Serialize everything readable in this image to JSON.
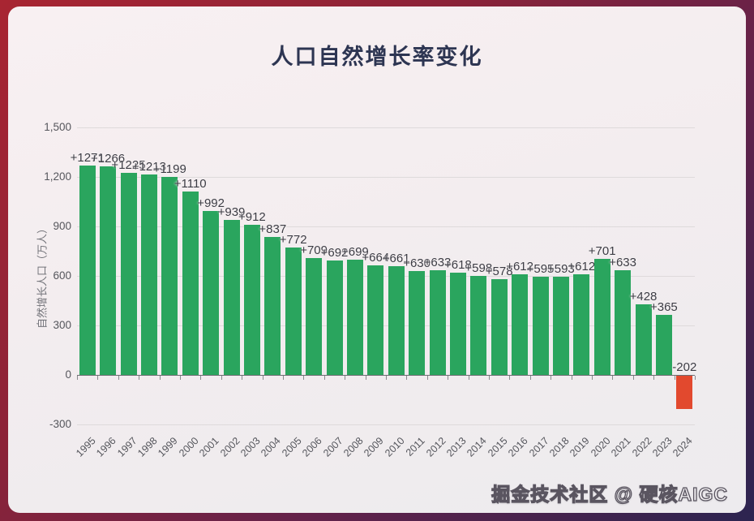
{
  "frame": {
    "border_gradient": [
      "#a82532",
      "#8c2338",
      "#63224a",
      "#2c2450"
    ],
    "card_bg": [
      "#f8f0f2",
      "#edebee"
    ]
  },
  "header": {
    "title": "人口自然增长率变化",
    "title_color": "#2d3552"
  },
  "watermark": {
    "text": "掘金技术社区 @ 硬核AIGC"
  },
  "chart_data": {
    "type": "bar",
    "title": "人口自然增长率变化",
    "xlabel": "",
    "ylabel": "自然增长人口（万人）",
    "categories": [
      "1995",
      "1996",
      "1997",
      "1998",
      "1999",
      "2000",
      "2001",
      "2002",
      "2003",
      "2004",
      "2005",
      "2006",
      "2007",
      "2008",
      "2009",
      "2010",
      "2011",
      "2012",
      "2013",
      "2014",
      "2015",
      "2016",
      "2017",
      "2018",
      "2019",
      "2020",
      "2021",
      "2022",
      "2023",
      "2024"
    ],
    "values": [
      1271,
      1266,
      1225,
      1213,
      1199,
      1110,
      992,
      939,
      912,
      837,
      772,
      709,
      692,
      699,
      664,
      661,
      630,
      633,
      618,
      598,
      578,
      612,
      595,
      593,
      612,
      701,
      633,
      428,
      365,
      -202
    ],
    "value_labels": [
      "+1271",
      "+1266",
      "+1225",
      "+1213",
      "+1199",
      "+1110",
      "+992",
      "+939",
      "+912",
      "+837",
      "+772",
      "+709",
      "+692",
      "+699",
      "+664",
      "+661",
      "+630",
      "+633",
      "+618",
      "+598",
      "+578",
      "+612",
      "+595",
      "+593",
      "+612",
      "+701",
      "+633",
      "+428",
      "+365",
      "-202"
    ],
    "yticks": [
      {
        "value": 1500,
        "label": "1,500"
      },
      {
        "value": 1200,
        "label": "1,200"
      },
      {
        "value": 900,
        "label": "900"
      },
      {
        "value": 600,
        "label": "600"
      },
      {
        "value": 300,
        "label": "300"
      },
      {
        "value": 0,
        "label": "0"
      },
      {
        "value": -300,
        "label": "-300"
      }
    ],
    "ylim": [
      -300,
      1500
    ],
    "grid": true,
    "legend": false,
    "colors": {
      "positive": "#2aa55e",
      "negative": "#e2492e"
    }
  }
}
